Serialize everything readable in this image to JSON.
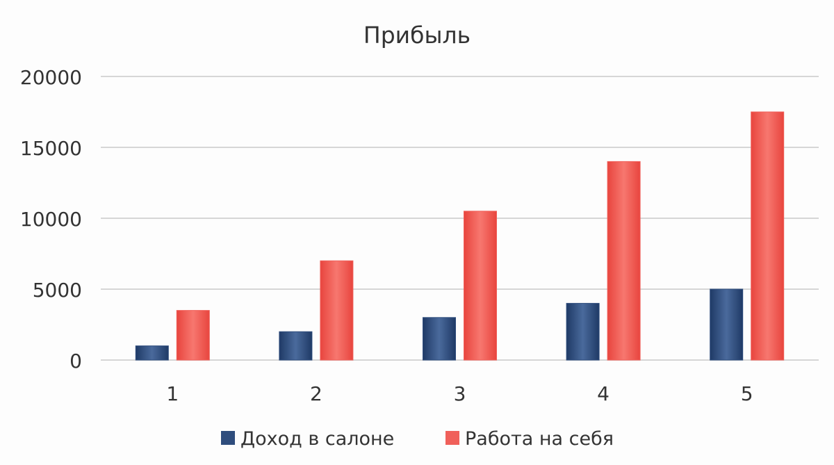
{
  "chart_data": {
    "type": "bar",
    "title": "Прибыль",
    "categories": [
      "1",
      "2",
      "3",
      "4",
      "5"
    ],
    "series": [
      {
        "name": "Доход в салоне",
        "values": [
          1000,
          2000,
          3000,
          4000,
          5000
        ],
        "color": "#2f4d7d"
      },
      {
        "name": "Работа на себя",
        "values": [
          3500,
          7000,
          10500,
          14000,
          17500
        ],
        "color": "#f0605a"
      }
    ],
    "ylim": [
      0,
      20000
    ],
    "yticks": [
      "0",
      "5000",
      "10000",
      "15000",
      "20000"
    ],
    "grid": true,
    "legend": "bottom"
  }
}
